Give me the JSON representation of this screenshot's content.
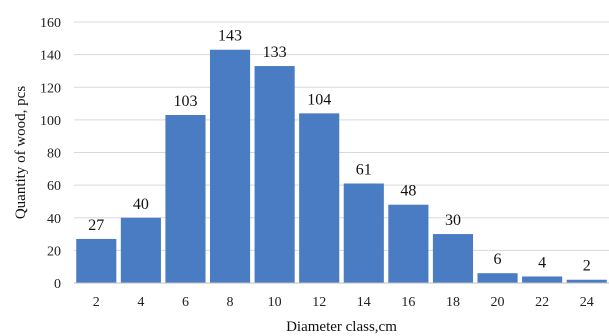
{
  "chart_data": {
    "type": "bar",
    "categories": [
      "2",
      "4",
      "6",
      "8",
      "10",
      "12",
      "14",
      "16",
      "18",
      "20",
      "22",
      "24"
    ],
    "values": [
      27,
      40,
      103,
      143,
      133,
      104,
      61,
      48,
      30,
      6,
      4,
      2
    ],
    "xlabel": "Diameter class,cm",
    "ylabel": "Quantity of wood, pcs",
    "ylim": [
      0,
      160
    ],
    "yticks": [
      0,
      20,
      40,
      60,
      80,
      100,
      120,
      140,
      160
    ],
    "grid": true,
    "bar_color": "#4a7cc3"
  }
}
